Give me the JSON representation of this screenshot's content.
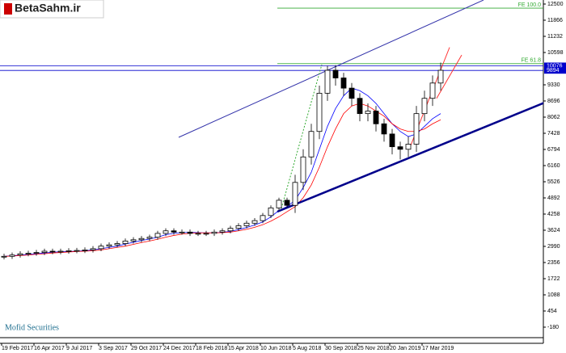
{
  "chart_data": {
    "type": "candlestick",
    "logo": "BetaSahm.ir",
    "footer": "Mofid Securities",
    "categories": [
      "19 Feb 2017",
      null,
      null,
      null,
      "16 Apr 2017",
      null,
      null,
      null,
      "9 Jul 2017",
      null,
      null,
      null,
      "3 Sep 2017",
      null,
      null,
      null,
      "29 Oct 2017",
      null,
      null,
      null,
      "24 Dec 2017",
      null,
      null,
      null,
      "18 Feb 2018",
      null,
      null,
      null,
      "15 Apr 2018",
      null,
      null,
      null,
      "10 Jun 2018",
      null,
      null,
      null,
      "5 Aug 2018",
      null,
      null,
      null,
      "30 Sep 2018",
      null,
      null,
      null,
      "25 Nov 2018",
      null,
      null,
      null,
      "20 Jan 2019",
      null,
      null,
      null,
      "17 Mar 2019",
      null,
      null
    ],
    "open": [
      2580,
      2600,
      2650,
      2700,
      2720,
      2750,
      2800,
      2780,
      2800,
      2820,
      2830,
      2850,
      2900,
      3000,
      3050,
      3100,
      3200,
      3250,
      3300,
      3350,
      3500,
      3600,
      3550,
      3550,
      3500,
      3500,
      3500,
      3550,
      3600,
      3700,
      3800,
      3900,
      4000,
      4200,
      4500,
      4800,
      4600,
      5500,
      6500,
      7500,
      9000,
      9900,
      9600,
      9200,
      8800,
      8200,
      8300,
      7800,
      7400,
      6900,
      6800,
      7000,
      8200,
      8800,
      9400
    ],
    "high": [
      2700,
      2750,
      2800,
      2820,
      2850,
      2900,
      2900,
      2900,
      2920,
      2930,
      2950,
      3000,
      3100,
      3150,
      3200,
      3300,
      3350,
      3400,
      3450,
      3600,
      3700,
      3700,
      3650,
      3650,
      3600,
      3600,
      3650,
      3700,
      3800,
      3900,
      4000,
      4100,
      4300,
      4600,
      4900,
      4900,
      5800,
      6800,
      7800,
      9300,
      10076,
      10100,
      9800,
      9400,
      9000,
      8600,
      8500,
      8000,
      7600,
      7100,
      7300,
      8500,
      9100,
      9700,
      10200
    ],
    "low": [
      2480,
      2500,
      2550,
      2600,
      2620,
      2650,
      2680,
      2680,
      2700,
      2720,
      2730,
      2750,
      2800,
      2900,
      2950,
      3000,
      3100,
      3150,
      3200,
      3250,
      3400,
      3450,
      3450,
      3400,
      3400,
      3400,
      3400,
      3450,
      3500,
      3600,
      3700,
      3800,
      3900,
      4100,
      4400,
      4500,
      4300,
      5200,
      6200,
      7200,
      8700,
      9300,
      8900,
      8500,
      7900,
      7900,
      7500,
      7100,
      6600,
      6400,
      6500,
      6700,
      7900,
      8500,
      9100
    ],
    "close": [
      2600,
      2650,
      2700,
      2720,
      2750,
      2800,
      2780,
      2800,
      2820,
      2830,
      2850,
      2900,
      3000,
      3050,
      3100,
      3200,
      3250,
      3300,
      3350,
      3500,
      3600,
      3550,
      3550,
      3500,
      3500,
      3500,
      3550,
      3600,
      3700,
      3800,
      3900,
      4000,
      4200,
      4500,
      4800,
      4600,
      5500,
      6500,
      7500,
      9000,
      9900,
      9600,
      9200,
      8800,
      8200,
      8300,
      7800,
      7400,
      6900,
      6800,
      7000,
      8200,
      8800,
      9400,
      9900
    ],
    "lines": [
      {
        "color": "#0000ff",
        "values": [
          2600,
          2620,
          2650,
          2680,
          2700,
          2730,
          2760,
          2780,
          2790,
          2800,
          2820,
          2850,
          2900,
          2950,
          3000,
          3080,
          3150,
          3220,
          3280,
          3350,
          3450,
          3500,
          3530,
          3540,
          3530,
          3520,
          3520,
          3540,
          3580,
          3650,
          3730,
          3830,
          3950,
          4150,
          4400,
          4550,
          4800,
          5300,
          5900,
          6800,
          7700,
          8400,
          8900,
          9200,
          9100,
          8900,
          8600,
          8200,
          7800,
          7500,
          7300,
          7400,
          7700,
          8000,
          8200
        ]
      },
      {
        "color": "#ff0000",
        "values": [
          2600,
          2610,
          2630,
          2650,
          2680,
          2700,
          2730,
          2750,
          2770,
          2790,
          2800,
          2820,
          2850,
          2900,
          2950,
          3000,
          3070,
          3140,
          3200,
          3270,
          3350,
          3420,
          3470,
          3500,
          3520,
          3520,
          3520,
          3530,
          3550,
          3600,
          3660,
          3740,
          3840,
          3980,
          4150,
          4350,
          4550,
          4900,
          5400,
          6100,
          6900,
          7600,
          8200,
          8500,
          8600,
          8500,
          8300,
          8100,
          7800,
          7600,
          7500,
          7500,
          7600,
          7800,
          7960
        ]
      }
    ],
    "trendlines": [
      {
        "color": "#3333aa",
        "width": 1,
        "points": [
          [
            21.6,
            7270
          ],
          [
            59.3,
            12658
          ]
        ]
      },
      {
        "color": "#00008b",
        "width": 2.5,
        "points": [
          [
            33.8,
            4353
          ],
          [
            69.8,
            9013
          ]
        ]
      },
      {
        "color": "#ff3333",
        "width": 1,
        "points": [
          [
            50.3,
            6953
          ],
          [
            55.1,
            10800
          ]
        ]
      },
      {
        "color": "#ff3333",
        "width": 1,
        "points": [
          [
            53.5,
            8800
          ],
          [
            56.6,
            10500
          ]
        ]
      },
      {
        "color": "#33aa33",
        "width": 1,
        "dashed": true,
        "points": [
          [
            34.3,
            4480
          ],
          [
            39.3,
            10124
          ]
        ]
      }
    ],
    "levels": [
      {
        "value": 10076,
        "color": "#0000cc"
      },
      {
        "value": 9894,
        "color": "#0000cc"
      }
    ],
    "fib_levels": [
      {
        "label": "FE 100.0",
        "value": 12340,
        "color": "#33aa33",
        "from": 33.8
      },
      {
        "label": "FE 61.8",
        "value": 10160,
        "color": "#33aa33",
        "from": 33.8
      }
    ],
    "ylim": [
      -180,
      12500
    ],
    "yticks": [
      12500,
      11866,
      11232,
      10598,
      9330,
      8696,
      8062,
      7428,
      6794,
      6160,
      5526,
      4892,
      4258,
      3624,
      2990,
      2356,
      1722,
      1088,
      454,
      -180
    ]
  }
}
